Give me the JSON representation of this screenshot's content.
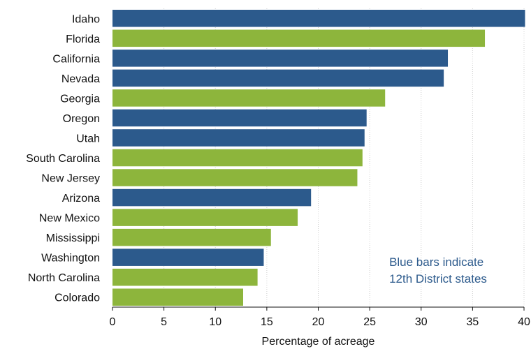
{
  "chart_data": {
    "type": "bar",
    "orientation": "horizontal",
    "categories": [
      "Idaho",
      "Florida",
      "California",
      "Nevada",
      "Georgia",
      "Oregon",
      "Utah",
      "South Carolina",
      "New Jersey",
      "Arizona",
      "New Mexico",
      "Mississippi",
      "Washington",
      "North Carolina",
      "Colorado"
    ],
    "values": [
      40.1,
      36.2,
      32.6,
      32.2,
      26.5,
      24.7,
      24.5,
      24.3,
      23.8,
      19.3,
      18.0,
      15.4,
      14.7,
      14.1,
      12.7
    ],
    "twelfth_district": [
      true,
      false,
      true,
      true,
      false,
      true,
      true,
      false,
      false,
      true,
      false,
      false,
      true,
      false,
      false
    ],
    "colors": {
      "twelfth_district": "#2c5a8c",
      "other": "#8db53c"
    },
    "xlabel": "Percentage of acreage",
    "xlim": [
      0,
      40
    ],
    "xticks": [
      0,
      5,
      10,
      15,
      20,
      25,
      30,
      35,
      40
    ],
    "grid": true,
    "annotation": [
      "Blue bars indicate",
      "12th District states"
    ],
    "annotation_color": "#2c5a8c"
  }
}
